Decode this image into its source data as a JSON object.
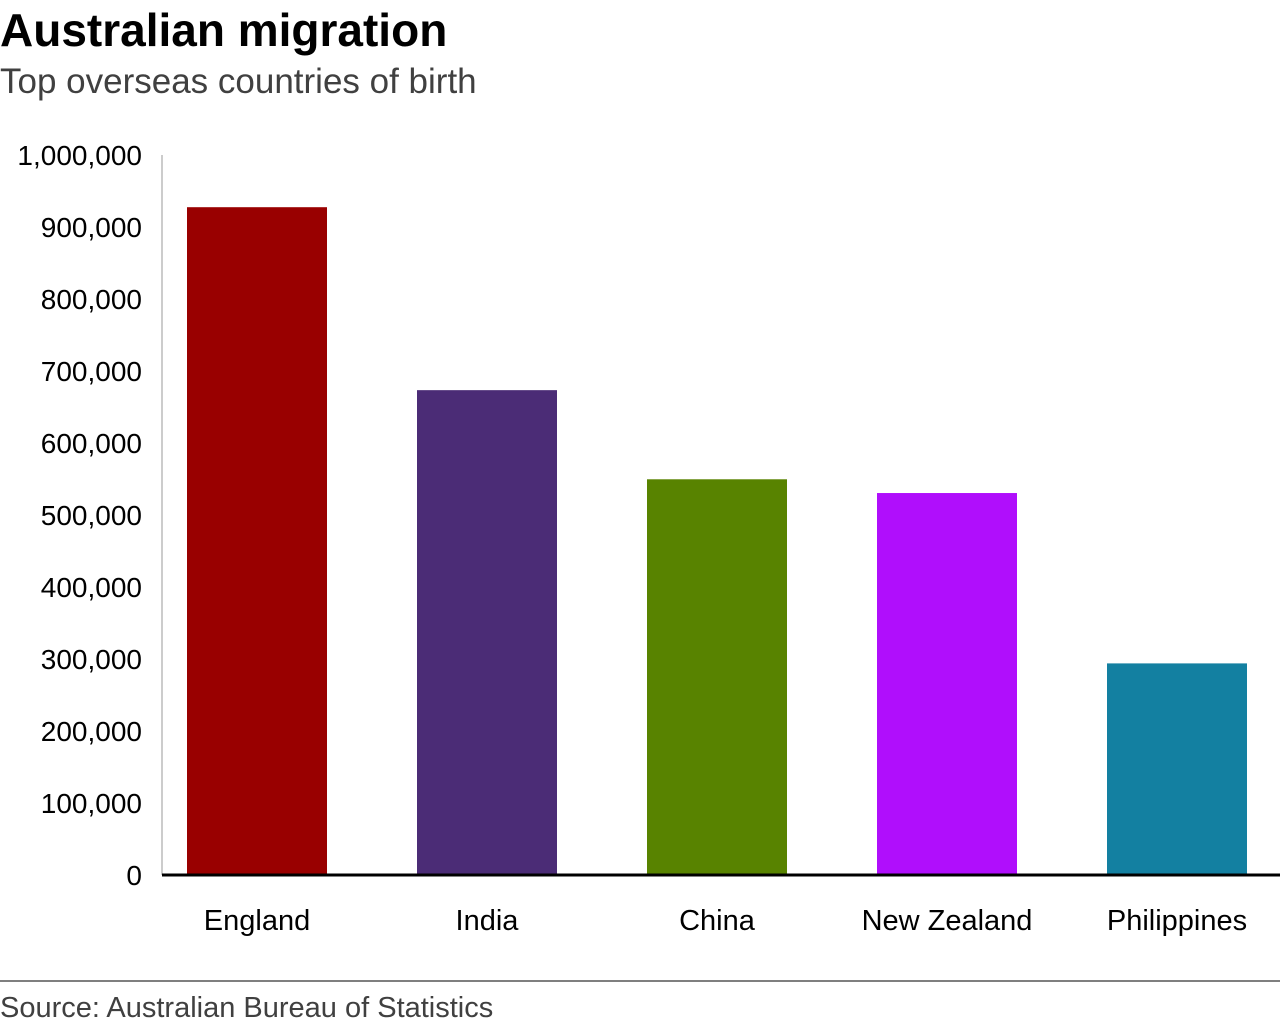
{
  "header": {
    "title": "Australian migration",
    "subtitle": "Top overseas countries of birth"
  },
  "footer": {
    "source": "Source: Australian Bureau of Statistics"
  },
  "chart_data": {
    "type": "bar",
    "title": "Australian migration",
    "subtitle": "Top overseas countries of birth",
    "xlabel": "",
    "ylabel": "",
    "categories": [
      "England",
      "India",
      "China",
      "New Zealand",
      "Philippines"
    ],
    "values": [
      927500,
      673400,
      549600,
      530500,
      293900
    ],
    "colors": [
      "#990000",
      "#4b2c76",
      "#588300",
      "#b00efc",
      "#1380a1"
    ],
    "ylim": [
      0,
      1000000
    ],
    "yticks": [
      0,
      100000,
      200000,
      300000,
      400000,
      500000,
      600000,
      700000,
      800000,
      900000,
      1000000
    ],
    "ytick_labels": [
      "0",
      "100,000",
      "200,000",
      "300,000",
      "400,000",
      "500,000",
      "600,000",
      "700,000",
      "800,000",
      "900,000",
      "1,000,000"
    ],
    "grid": false,
    "legend": "none"
  }
}
